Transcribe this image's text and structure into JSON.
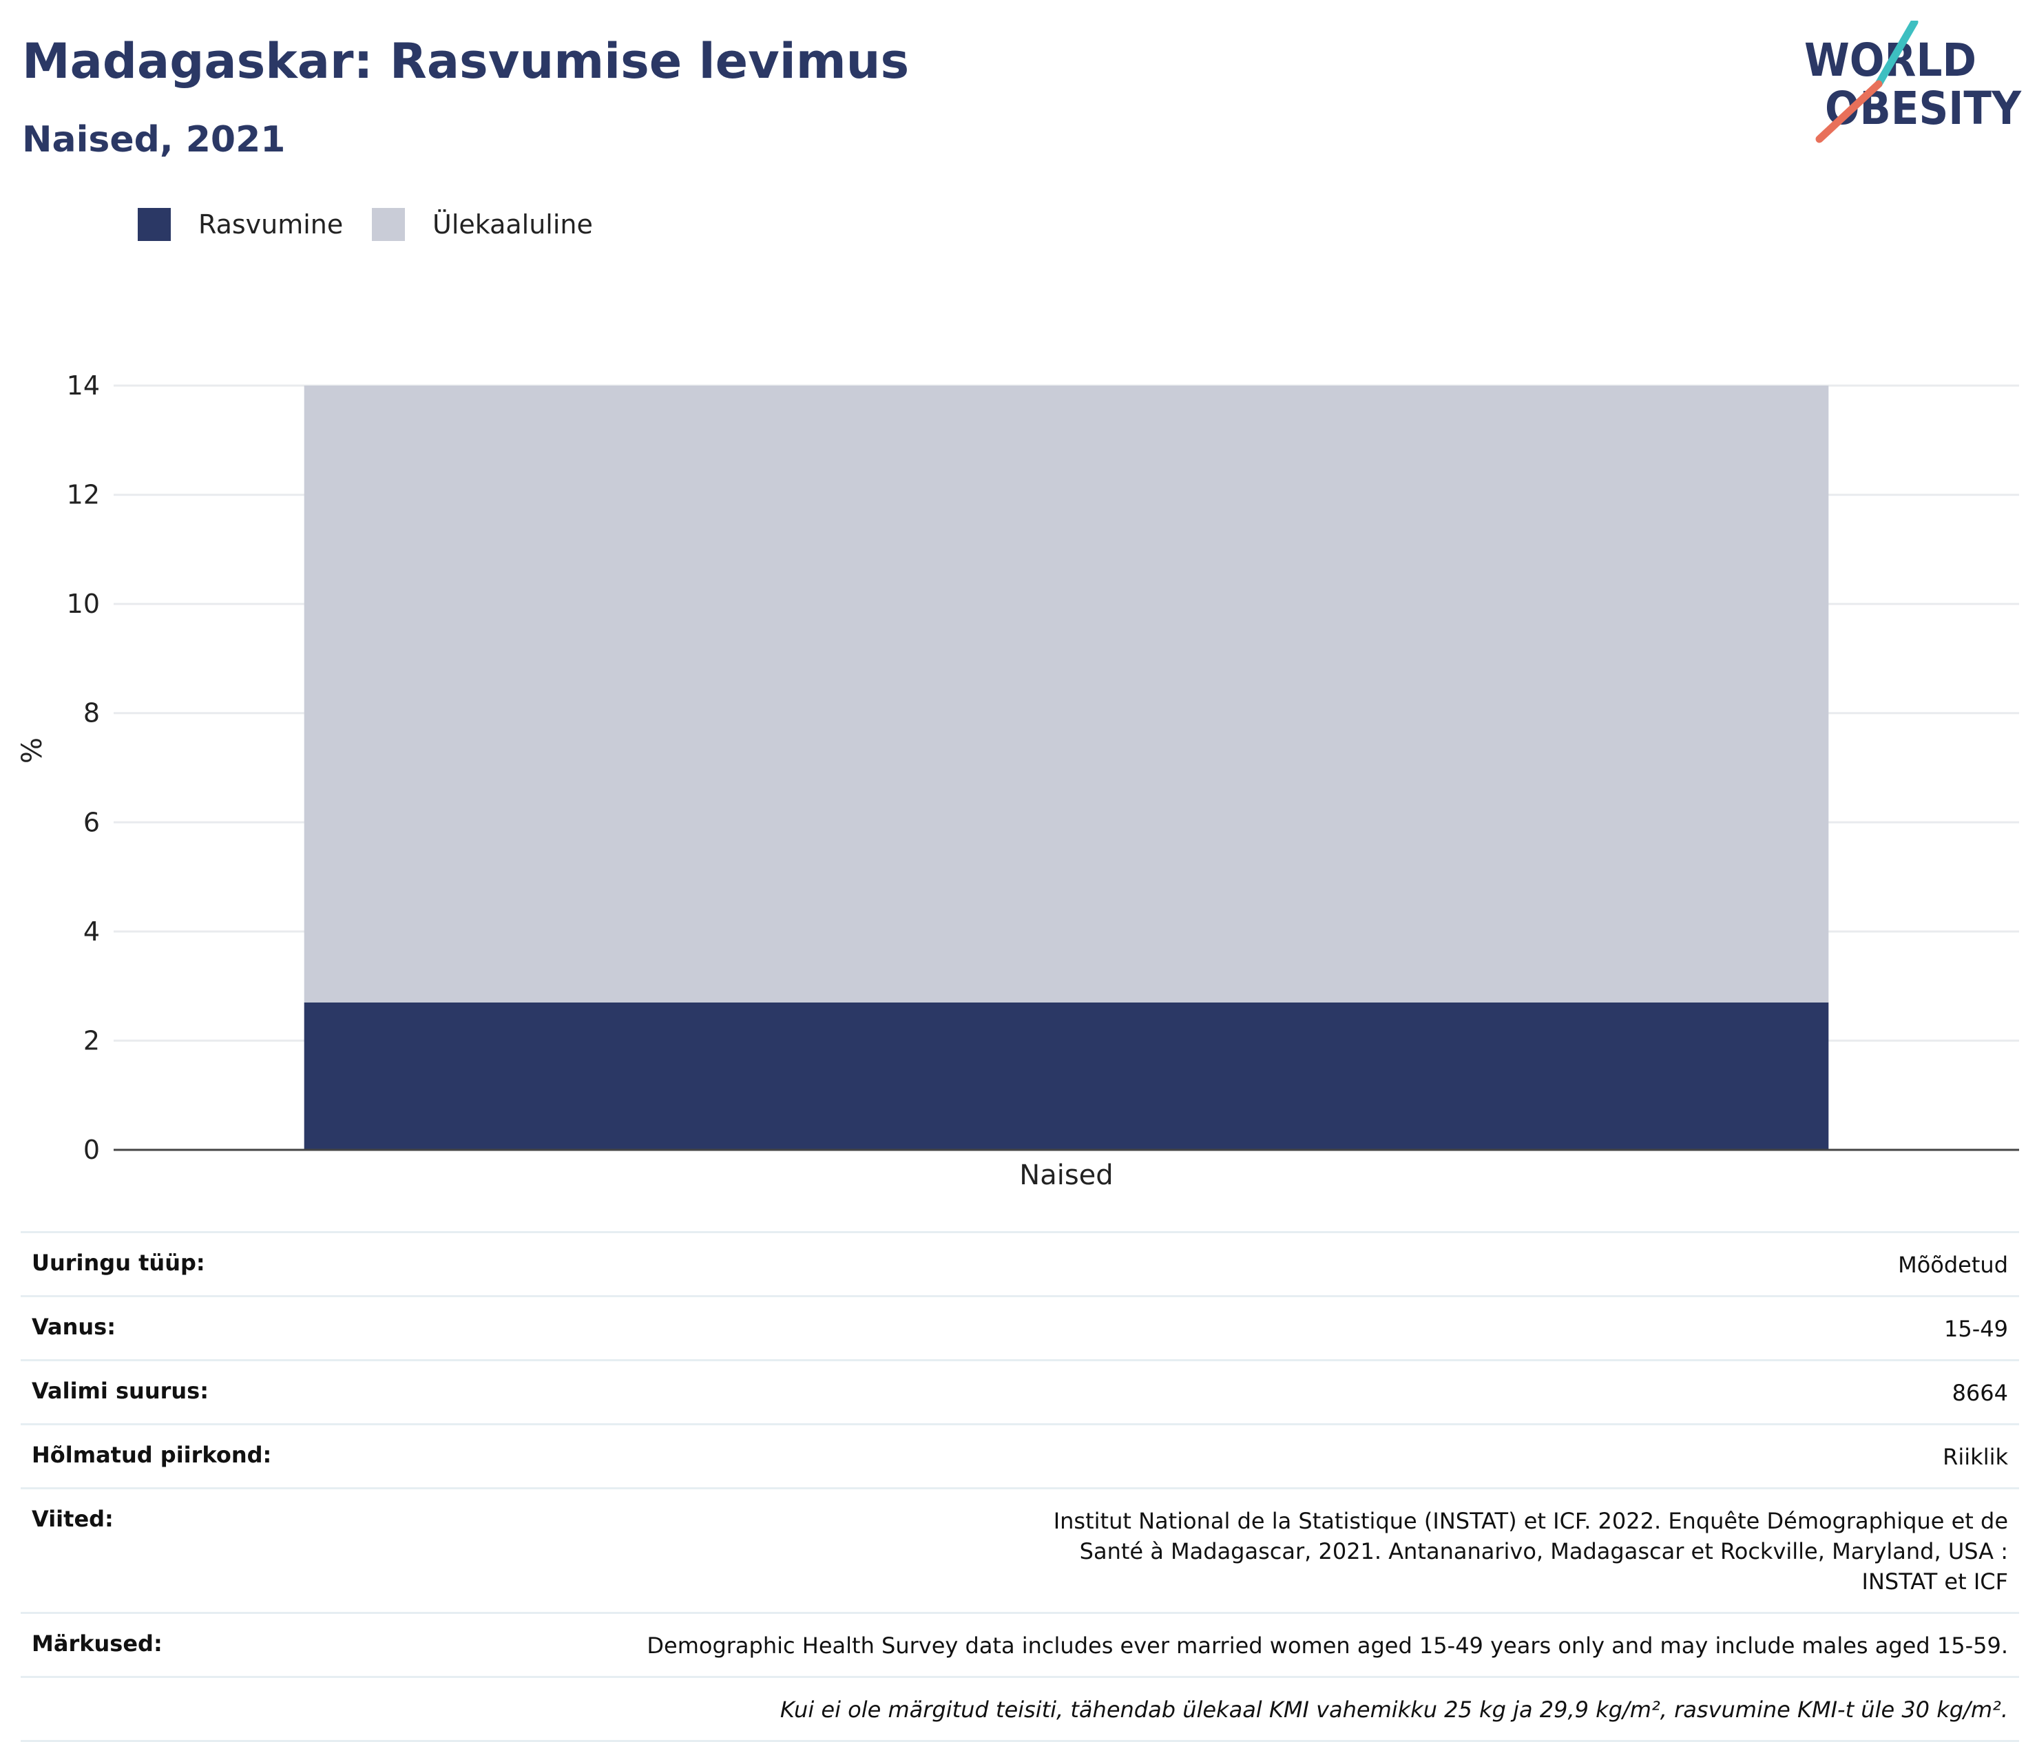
{
  "header": {
    "title": "Madagaskar: Rasvumise levimus",
    "subtitle": "Naised, 2021"
  },
  "logo": {
    "line1": "WORLD",
    "line2": "OBESITY",
    "colors": {
      "text": "#2b3865",
      "slash_top": "#3dbfc1",
      "slash_bottom": "#e8705a"
    }
  },
  "legend": {
    "items": [
      {
        "label": "Rasvumine",
        "color": "#2b3865"
      },
      {
        "label": "Ülekaaluline",
        "color": "#c9ccd7"
      }
    ]
  },
  "chart_data": {
    "type": "bar",
    "stacked": true,
    "categories": [
      "Naised"
    ],
    "series": [
      {
        "name": "Rasvumine",
        "values": [
          2.7
        ],
        "color": "#2b3865"
      },
      {
        "name": "Ülekaaluline",
        "values": [
          11.3
        ],
        "color": "#c9ccd7"
      }
    ],
    "ylabel": "%",
    "ylim": [
      0,
      14
    ],
    "yticks": [
      0,
      2,
      4,
      6,
      8,
      10,
      12,
      14
    ],
    "grid": true,
    "legend_position": "top-left"
  },
  "info": {
    "rows": [
      {
        "key": "Uuringu tüüp:",
        "value": "Mõõdetud"
      },
      {
        "key": "Vanus:",
        "value": "15-49"
      },
      {
        "key": "Valimi suurus:",
        "value": "8664"
      },
      {
        "key": "Hõlmatud piirkond:",
        "value": "Riiklik"
      },
      {
        "key": "Viited:",
        "value": "Institut National de la Statistique (INSTAT) et ICF. 2022. Enquête Démographique et de Santé à Madagascar, 2021. Antananarivo, Madagascar et Rockville, Maryland, USA : INSTAT et ICF"
      },
      {
        "key": "Märkused:",
        "value": "Demographic Health Survey data includes ever married women aged 15-49 years only and may include males aged 15-59."
      }
    ],
    "footnote": "Kui ei ole märgitud teisiti, tähendab ülekaal KMI vahemikku 25 kg ja 29,9 kg/m², rasvumine KMI-t üle 30 kg/m²."
  }
}
